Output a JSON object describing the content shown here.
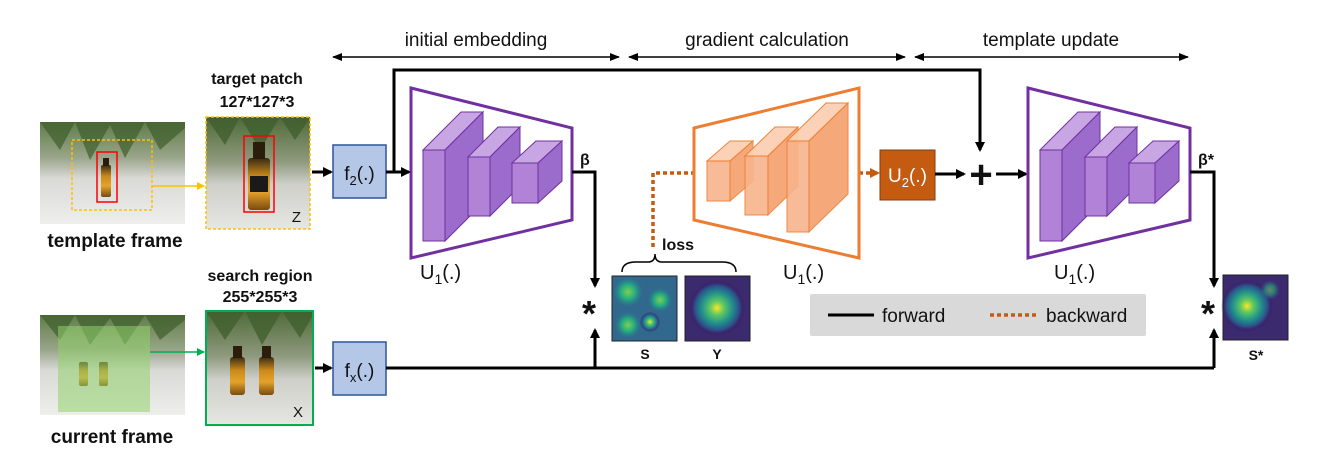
{
  "phases": [
    {
      "id": "initial",
      "label": "initial embedding"
    },
    {
      "id": "gradient",
      "label": "gradient calculation"
    },
    {
      "id": "update",
      "label": "template update"
    }
  ],
  "inputs": {
    "template_frame": "template frame",
    "current_frame": "current frame",
    "target_patch": "target patch",
    "target_patch_size": "127*127*3",
    "target_patch_var": "Z",
    "search_region": "search region",
    "search_region_size": "255*255*3",
    "search_region_var": "X"
  },
  "blocks": {
    "f2_main": "f",
    "f2_sub": "2",
    "f2_tail": "(.)",
    "fx_main": "f",
    "fx_sub": "x",
    "fx_tail": "(.)",
    "u2_main": "U",
    "u2_sub": "2",
    "u2_tail": "(.)",
    "u1_main": "U",
    "u1_sub": "1",
    "u1_tail": "(.)"
  },
  "symbols": {
    "beta": "β",
    "beta_star": "β*",
    "correlation": "*",
    "plus": "+"
  },
  "maps": {
    "s": "S",
    "y": "Y",
    "s_star": "S*",
    "loss": "loss"
  },
  "legend": {
    "forward": "forward",
    "backward": "backward"
  },
  "colors": {
    "purple": "#7030a0",
    "purple_fill": "#b083d6",
    "orange": "#ed7d31",
    "orange_fill": "#f8b48c",
    "u2_fill": "#c55a11",
    "f_fill": "#b4c7e7",
    "f_stroke": "#2f5597",
    "template_box": "#ffc000",
    "search_box": "#00b050",
    "target_box": "#ff0000"
  }
}
